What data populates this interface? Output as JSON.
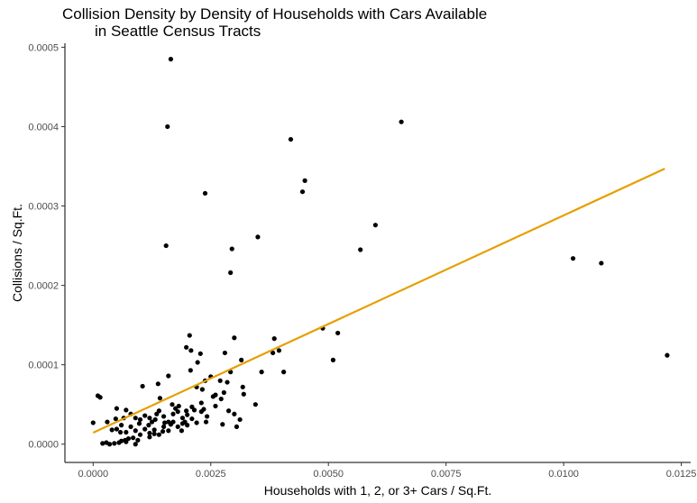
{
  "chart_data": {
    "type": "scatter",
    "title_line1": "Collision Density by Density of Households with Cars Available",
    "title_line2": "in Seattle Census Tracts",
    "xlabel": "Households with 1, 2, or 3+ Cars / Sq.Ft.",
    "ylabel": "Collisions / Sq.Ft.",
    "xlim": [
      -0.0006,
      0.0127
    ],
    "ylim": [
      -2.3e-05,
      0.000505
    ],
    "x_ticks": [
      {
        "value": 0.0,
        "label": "0.0000"
      },
      {
        "value": 0.0025,
        "label": "0.0025"
      },
      {
        "value": 0.005,
        "label": "0.0050"
      },
      {
        "value": 0.0075,
        "label": "0.0075"
      },
      {
        "value": 0.01,
        "label": "0.0100"
      },
      {
        "value": 0.0125,
        "label": "0.0125"
      }
    ],
    "y_ticks": [
      {
        "value": 0.0,
        "label": "0.0000"
      },
      {
        "value": 0.0001,
        "label": "0.0001"
      },
      {
        "value": 0.0002,
        "label": "0.0002"
      },
      {
        "value": 0.0003,
        "label": "0.0003"
      },
      {
        "value": 0.0004,
        "label": "0.0004"
      },
      {
        "value": 0.0005,
        "label": "0.0005"
      }
    ],
    "grid": false,
    "point_color": "#000000",
    "trend_color": "#E69F00",
    "trend_line": {
      "x": [
        0.0,
        0.01215
      ],
      "y": [
        1.45e-05,
        0.000347
      ]
    },
    "points": [
      [
        0.00165,
        0.000485
      ],
      [
        0.00158,
        0.0004
      ],
      [
        0.00655,
        0.000406
      ],
      [
        0.0042,
        0.000384
      ],
      [
        0.0045,
        0.000332
      ],
      [
        0.00445,
        0.000318
      ],
      [
        0.00238,
        0.000316
      ],
      [
        0.006,
        0.000276
      ],
      [
        0.0035,
        0.000261
      ],
      [
        0.00155,
        0.00025
      ],
      [
        0.00295,
        0.000246
      ],
      [
        0.00568,
        0.000245
      ],
      [
        0.0102,
        0.000234
      ],
      [
        0.0108,
        0.000228
      ],
      [
        0.00292,
        0.000216
      ],
      [
        0.0122,
        0.000112
      ],
      [
        0.00488,
        0.000146
      ],
      [
        0.0052,
        0.00014
      ],
      [
        0.00205,
        0.000137
      ],
      [
        0.003,
        0.000134
      ],
      [
        0.00385,
        0.000133
      ],
      [
        0.0028,
        0.000115
      ],
      [
        0.00395,
        0.000118
      ],
      [
        0.00382,
        0.000115
      ],
      [
        0.0051,
        0.000106
      ],
      [
        0.00198,
        0.000122
      ],
      [
        0.00208,
        0.000118
      ],
      [
        0.00228,
        0.000114
      ],
      [
        0.00222,
        0.000103
      ],
      [
        0.00315,
        0.000106
      ],
      [
        0.00358,
        9.1e-05
      ],
      [
        0.00405,
        9.1e-05
      ],
      [
        0.00292,
        9.1e-05
      ],
      [
        0.00207,
        9.3e-05
      ],
      [
        0.0016,
        8.6e-05
      ],
      [
        0.00138,
        7.6e-05
      ],
      [
        0.00238,
        8e-05
      ],
      [
        0.0025,
        8.5e-05
      ],
      [
        0.0027,
        8e-05
      ],
      [
        0.00285,
        7.8e-05
      ],
      [
        0.00318,
        7.2e-05
      ],
      [
        0.00105,
        7.3e-05
      ],
      [
        0.0022,
        7.2e-05
      ],
      [
        0.00232,
        6.9e-05
      ],
      [
        0.00142,
        5.8e-05
      ],
      [
        0.0026,
        6.2e-05
      ],
      [
        0.00278,
        6.5e-05
      ],
      [
        0.0032,
        6.3e-05
      ],
      [
        0.0005,
        4.5e-05
      ],
      [
        0.00065,
        3.3e-05
      ],
      [
        0.0007,
        4.3e-05
      ],
      [
        0.0008,
        3.8e-05
      ],
      [
        0.0009,
        3.3e-05
      ],
      [
        0.001,
        3.1e-05
      ],
      [
        0.0011,
        3.6e-05
      ],
      [
        0.0012,
        3.3e-05
      ],
      [
        0.00125,
        2.8e-05
      ],
      [
        0.00135,
        3.8e-05
      ],
      [
        0.0014,
        4.2e-05
      ],
      [
        0.0015,
        3.5e-05
      ],
      [
        0.0016,
        2.8e-05
      ],
      [
        0.00165,
        2.5e-05
      ],
      [
        0.0017,
        3.8e-05
      ],
      [
        0.00175,
        4.5e-05
      ],
      [
        0.0018,
        4.1e-05
      ],
      [
        0.0019,
        3.3e-05
      ],
      [
        0.00195,
        2.8e-05
      ],
      [
        0.002,
        3.7e-05
      ],
      [
        0.0021,
        4.7e-05
      ],
      [
        0.00215,
        4.3e-05
      ],
      [
        0.0023,
        5.2e-05
      ],
      [
        0.00235,
        4.4e-05
      ],
      [
        0.00242,
        3.5e-05
      ],
      [
        0.00255,
        6e-05
      ],
      [
        0.0026,
        4.8e-05
      ],
      [
        0.00272,
        5.7e-05
      ],
      [
        0.00288,
        4.2e-05
      ],
      [
        0.003,
        3.8e-05
      ],
      [
        0.00305,
        2.2e-05
      ],
      [
        0.00275,
        2.5e-05
      ],
      [
        0.00345,
        5e-05
      ],
      [
        0.00312,
        3.1e-05
      ],
      [
        0.0003,
        2.8e-05
      ],
      [
        0.0004,
        1.8e-05
      ],
      [
        0.0005,
        1.9e-05
      ],
      [
        0.0006,
        2.4e-05
      ],
      [
        0.0007,
        1.5e-05
      ],
      [
        0.0008,
        2.2e-05
      ],
      [
        0.0009,
        1.7e-05
      ],
      [
        0.001,
        1.2e-05
      ],
      [
        0.0011,
        1.9e-05
      ],
      [
        0.0012,
        1.4e-05
      ],
      [
        0.0013,
        1.8e-05
      ],
      [
        0.0014,
        1.2e-05
      ],
      [
        0.0015,
        2.2e-05
      ],
      [
        0.0016,
        1.7e-05
      ],
      [
        0.0017,
        2.8e-05
      ],
      [
        0.0018,
        2.2e-05
      ],
      [
        0.0019,
        2.6e-05
      ],
      [
        0.002,
        2.4e-05
      ],
      [
        0.0021,
        3.2e-05
      ],
      [
        0.0022,
        2.7e-05
      ],
      [
        0.0023,
        4.1e-05
      ],
      [
        0.0024,
        2.8e-05
      ],
      [
        0.00085,
        8e-06
      ],
      [
        0.00095,
        5e-06
      ],
      [
        0.0012,
        9e-06
      ],
      [
        0.0013,
        1.3e-05
      ],
      [
        0.0002,
        1e-06
      ],
      [
        0.00028,
        2e-06
      ],
      [
        0.00035,
        0.0
      ],
      [
        0.00045,
        1e-06
      ],
      [
        0.00055,
        2e-06
      ],
      [
        0.0006,
        4e-06
      ],
      [
        0.0007,
        3e-06
      ],
      [
        0.00075,
        7e-06
      ],
      [
        0.0009,
        0.0
      ],
      [
        0.0001,
        6.1e-05
      ],
      [
        0.00015,
        5.9e-05
      ],
      [
        0.0,
        2.7e-05
      ],
      [
        0.00048,
        3.2e-05
      ],
      [
        0.00058,
        1.5e-05
      ],
      [
        0.00068,
        5e-06
      ],
      [
        0.00098,
        2.6e-05
      ],
      [
        0.00118,
        2.4e-05
      ],
      [
        0.00148,
        1.6e-05
      ],
      [
        0.00188,
        1.7e-05
      ],
      [
        0.00198,
        4.2e-05
      ],
      [
        0.00182,
        4.8e-05
      ],
      [
        0.00168,
        5e-05
      ],
      [
        0.00152,
        2.7e-05
      ],
      [
        0.00132,
        3.1e-05
      ]
    ]
  }
}
